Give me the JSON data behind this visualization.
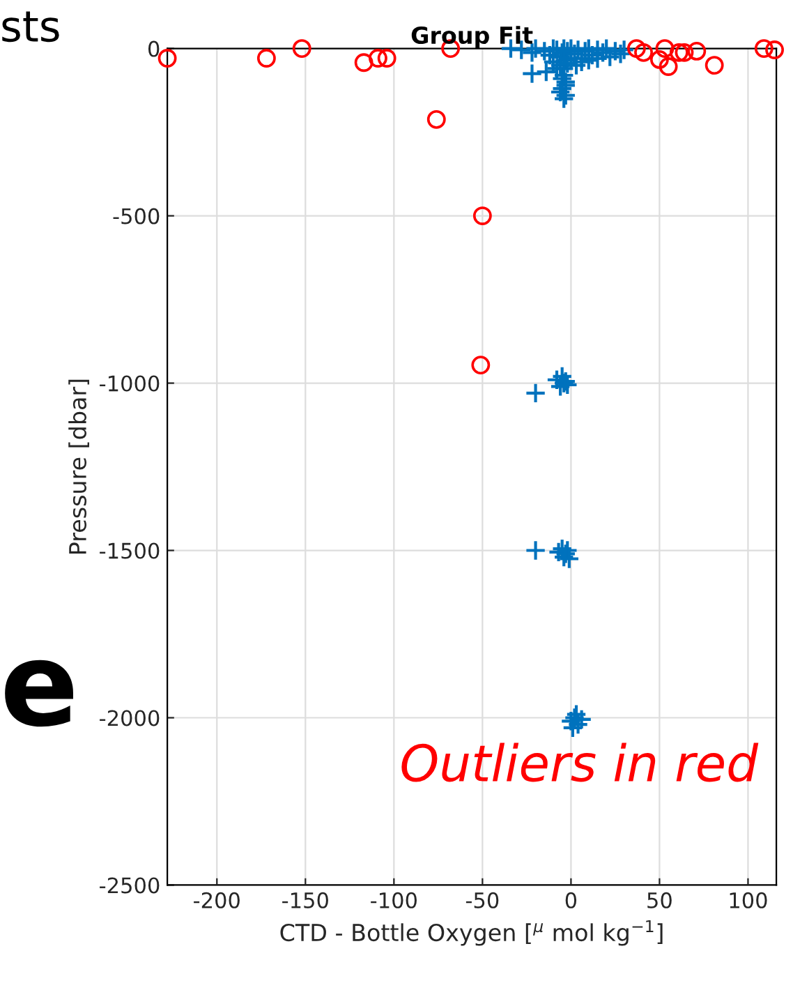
{
  "chart_data": {
    "type": "scatter",
    "title": "Group Fit",
    "xlabel": "CTD - Bottle Oxygen [$^{μ}$ mol kg$^{−1}$]",
    "ylabel": "Pressure [dbar]",
    "annotations": [
      "Outliers in red",
      "sts",
      "e"
    ],
    "xlim": [
      -228,
      116
    ],
    "ylim": [
      -2500,
      0
    ],
    "xticks": [
      -200,
      -150,
      -100,
      -50,
      0,
      50,
      100
    ],
    "yticks": [
      -2500,
      -2000,
      -1500,
      -1000,
      -500,
      0
    ],
    "grid": true,
    "series": [
      {
        "color": "#0072bd",
        "marker": "cross",
        "x": [
          -34,
          -28,
          -22,
          -20,
          -15,
          -12,
          -10,
          -8,
          -6,
          -5,
          -4,
          -3,
          -2,
          0,
          2,
          4,
          6,
          8,
          10,
          12,
          15,
          18,
          20,
          22,
          25,
          28,
          30,
          -10,
          -6,
          -4,
          -2,
          0,
          3,
          6,
          10,
          15,
          -22,
          -14,
          -8,
          -5,
          -3,
          -5,
          -4,
          -3,
          -4,
          -6,
          -3,
          -20,
          -8,
          -6,
          -5,
          -4,
          -3,
          -2,
          -20,
          -7,
          -5,
          -4,
          -3,
          -2,
          -1,
          0,
          2,
          4,
          6,
          1,
          3
        ],
        "values": [
          0,
          -4,
          -12,
          0,
          -8,
          -20,
          0,
          -4,
          -25,
          -12,
          0,
          -35,
          -8,
          0,
          -16,
          -4,
          -30,
          -8,
          0,
          -20,
          -4,
          -12,
          0,
          -25,
          -8,
          -16,
          -4,
          -40,
          -50,
          -60,
          -45,
          -30,
          -50,
          -40,
          -35,
          -30,
          -75,
          -70,
          -60,
          -90,
          -110,
          -120,
          -150,
          -100,
          -80,
          -130,
          -140,
          -1030,
          -990,
          -1010,
          -980,
          -1000,
          -995,
          -1005,
          -1500,
          -1505,
          -1495,
          -1520,
          -1510,
          -1500,
          -1525,
          -2010,
          -2000,
          -2020,
          -2005,
          -2030,
          -1990
        ]
      },
      {
        "color": "#ff0000",
        "marker": "circle",
        "x": [
          -228,
          -172,
          -152,
          -117,
          -109,
          -104,
          -68,
          -76,
          37,
          41,
          50,
          53,
          55,
          61,
          64,
          71,
          81,
          109,
          115,
          -50,
          -51
        ],
        "values": [
          -29,
          -29,
          0,
          -42,
          -29,
          -29,
          0,
          -212,
          0,
          -12,
          -33,
          0,
          -54,
          -12,
          -12,
          -8,
          -50,
          0,
          -4,
          -500,
          -946
        ]
      }
    ]
  }
}
